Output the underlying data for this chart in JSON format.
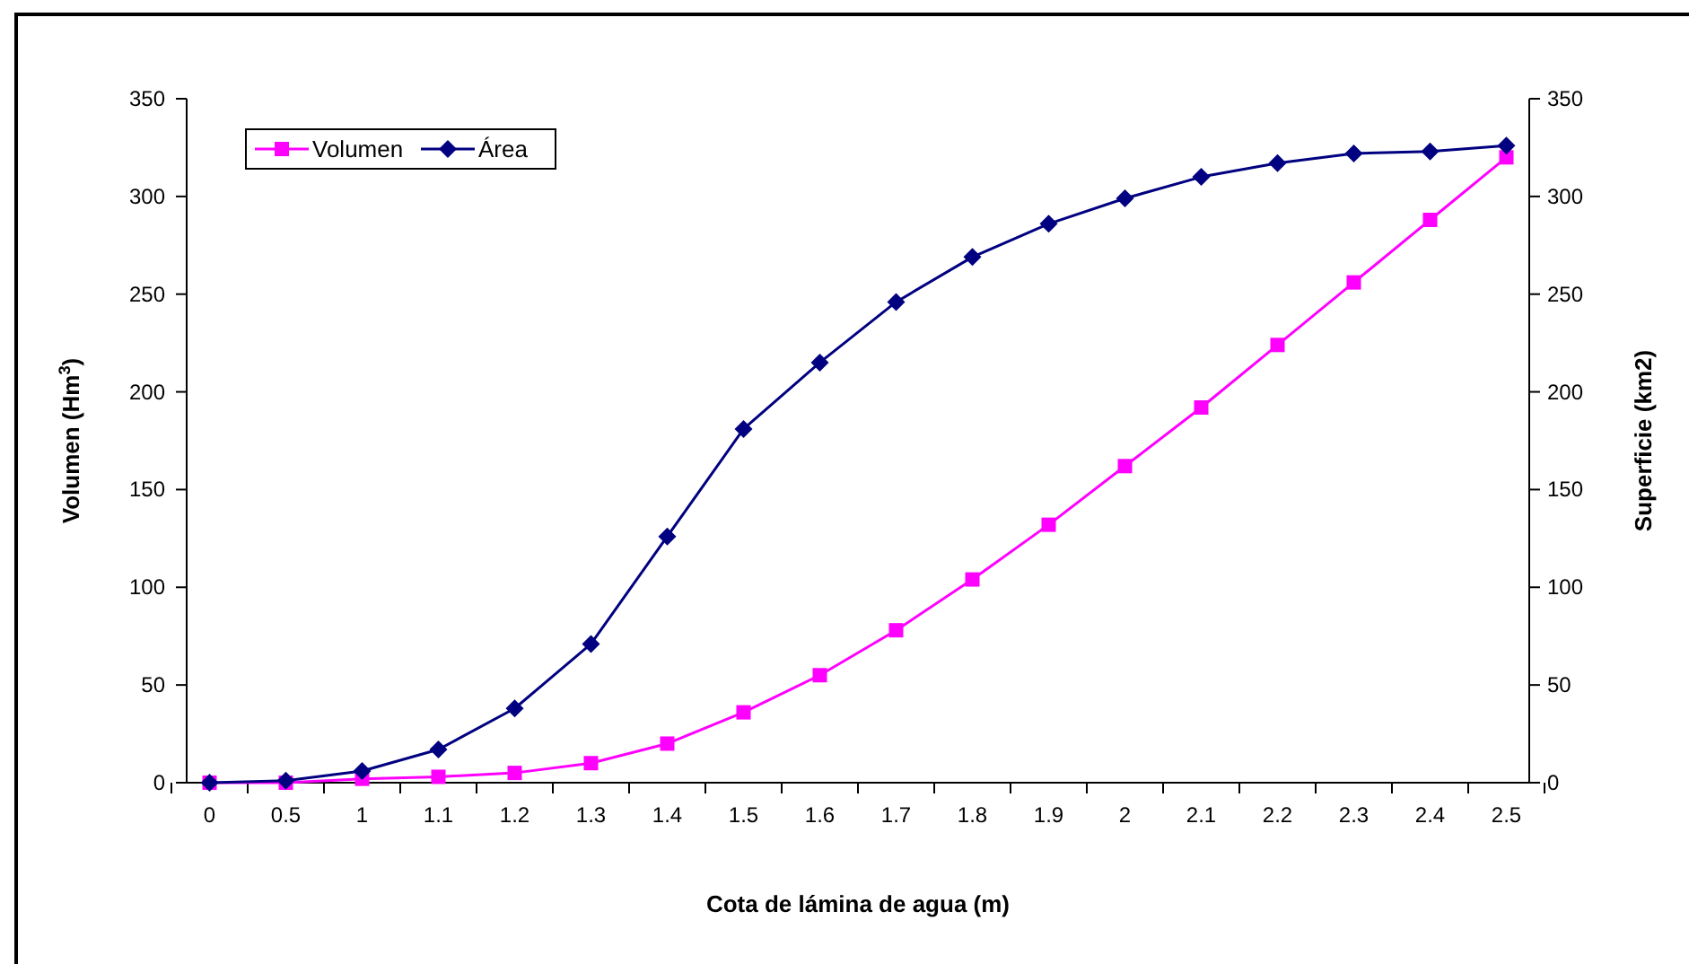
{
  "chart_data": {
    "type": "line",
    "xlabel": "Cota de lámina de agua (m)",
    "ylabel": "Volumen (Hm$^{3}$)",
    "y2label": "Superficie (km2)",
    "categories": [
      "0",
      "0.5",
      "1",
      "1.1",
      "1.2",
      "1.3",
      "1.4",
      "1.5",
      "1.6",
      "1.7",
      "1.8",
      "1.9",
      "2",
      "2.1",
      "2.2",
      "2.3",
      "2.4",
      "2.5"
    ],
    "series": [
      {
        "name": "Volumen",
        "color": "#ff00ff",
        "marker": "square",
        "values": [
          0,
          0,
          2,
          3,
          5,
          10,
          20,
          36,
          55,
          78,
          104,
          132,
          162,
          192,
          224,
          256,
          288,
          320
        ]
      },
      {
        "name": "Área",
        "color": "#000080",
        "marker": "diamond",
        "axis": "y2",
        "values": [
          0,
          1,
          6,
          17,
          38,
          71,
          126,
          181,
          215,
          246,
          269,
          286,
          299,
          310,
          317,
          322,
          323,
          326
        ]
      }
    ],
    "ylim": [
      0,
      350
    ],
    "yticks": [
      0,
      50,
      100,
      150,
      200,
      250,
      300,
      350
    ],
    "y2lim": [
      0,
      350
    ],
    "y2ticks": [
      0,
      50,
      100,
      150,
      200,
      250,
      300,
      350
    ],
    "grid": false,
    "legend": "top left"
  }
}
